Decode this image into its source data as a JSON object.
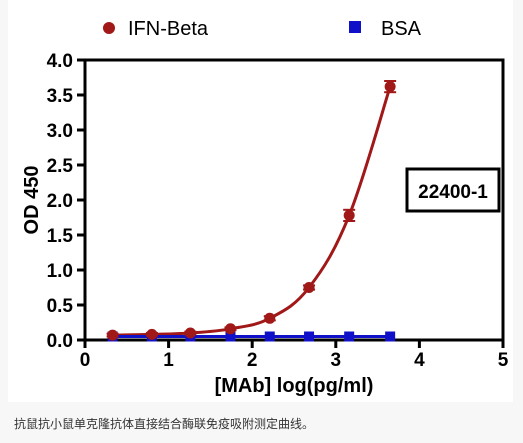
{
  "chart_data": {
    "type": "scatter",
    "xlabel": "[MAb] log(pg/ml)",
    "ylabel": "OD 450",
    "xlim": [
      0,
      5
    ],
    "ylim": [
      0,
      4.0
    ],
    "xticks": [
      "0",
      "1",
      "2",
      "3",
      "4",
      "5"
    ],
    "yticks": [
      "0.0",
      "0.5",
      "1.0",
      "1.5",
      "2.0",
      "2.5",
      "3.0",
      "3.5",
      "4.0"
    ],
    "legend_position": "top",
    "grid": false,
    "annotation": "22400-1",
    "series": [
      {
        "name": "IFN-Beta",
        "color": "#a01818",
        "marker": "circle",
        "fit": "sigmoidal",
        "x": [
          0.33,
          0.8,
          1.26,
          1.74,
          2.21,
          2.68,
          3.16,
          3.65
        ],
        "y": [
          0.07,
          0.08,
          0.1,
          0.16,
          0.31,
          0.75,
          1.78,
          3.62
        ],
        "err": [
          0.02,
          0.02,
          0.02,
          0.02,
          0.03,
          0.03,
          0.08,
          0.08
        ]
      },
      {
        "name": "BSA",
        "color": "#1010c8",
        "marker": "square",
        "fit": "flat",
        "x": [
          0.33,
          0.8,
          1.26,
          1.74,
          2.21,
          2.68,
          3.16,
          3.65
        ],
        "y": [
          0.05,
          0.05,
          0.05,
          0.05,
          0.05,
          0.05,
          0.05,
          0.05
        ],
        "err": [
          0,
          0,
          0,
          0,
          0,
          0,
          0,
          0
        ]
      }
    ]
  },
  "caption": "抗鼠抗小鼠单克隆抗体直接结合酶联免疫吸附测定曲线。"
}
